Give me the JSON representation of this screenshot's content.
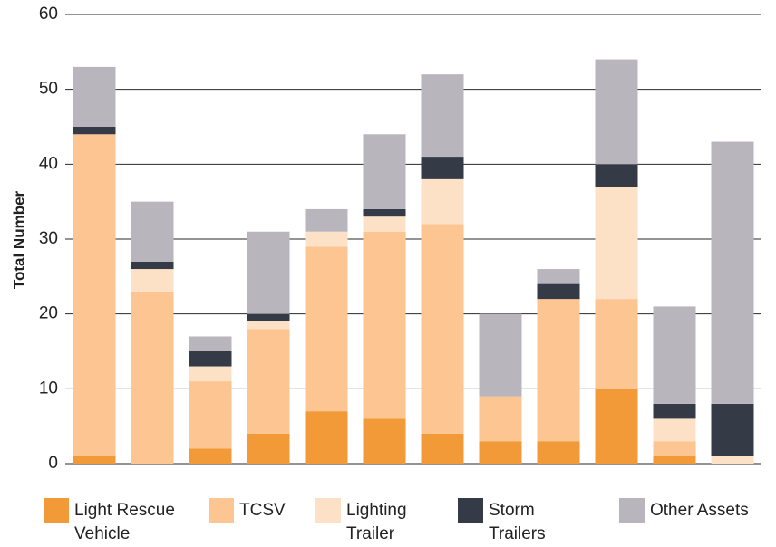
{
  "chart_data": {
    "type": "stacked-bar",
    "y_label": "Total Number",
    "categories": [
      null,
      null,
      null,
      null,
      null,
      null,
      null,
      null,
      null,
      null,
      null,
      null
    ],
    "series": [
      {
        "name": "Light Rescue Vehicle",
        "color": "#f39a38",
        "values": [
          1,
          0,
          2,
          4,
          7,
          6,
          4,
          3,
          3,
          10,
          1,
          0
        ]
      },
      {
        "name": "TCSV",
        "color": "#fcc591",
        "values": [
          43,
          23,
          9,
          14,
          22,
          25,
          28,
          6,
          19,
          12,
          2,
          0
        ]
      },
      {
        "name": "Lighting Trailer",
        "color": "#fde1c6",
        "values": [
          0,
          3,
          2,
          1,
          2,
          2,
          6,
          0,
          0,
          15,
          3,
          1
        ]
      },
      {
        "name": "Storm Trailers",
        "color": "#353a47",
        "values": [
          1,
          1,
          2,
          1,
          0,
          1,
          3,
          0,
          2,
          3,
          2,
          7
        ]
      },
      {
        "name": "Other Assets",
        "color": "#b8b6bc",
        "values": [
          8,
          8,
          2,
          11,
          3,
          10,
          11,
          11,
          2,
          14,
          13,
          35
        ]
      }
    ],
    "ylim": [
      0,
      60
    ],
    "yticks": [
      0,
      10,
      20,
      30,
      40,
      50,
      60
    ],
    "grid": true,
    "legend": "bottom"
  }
}
